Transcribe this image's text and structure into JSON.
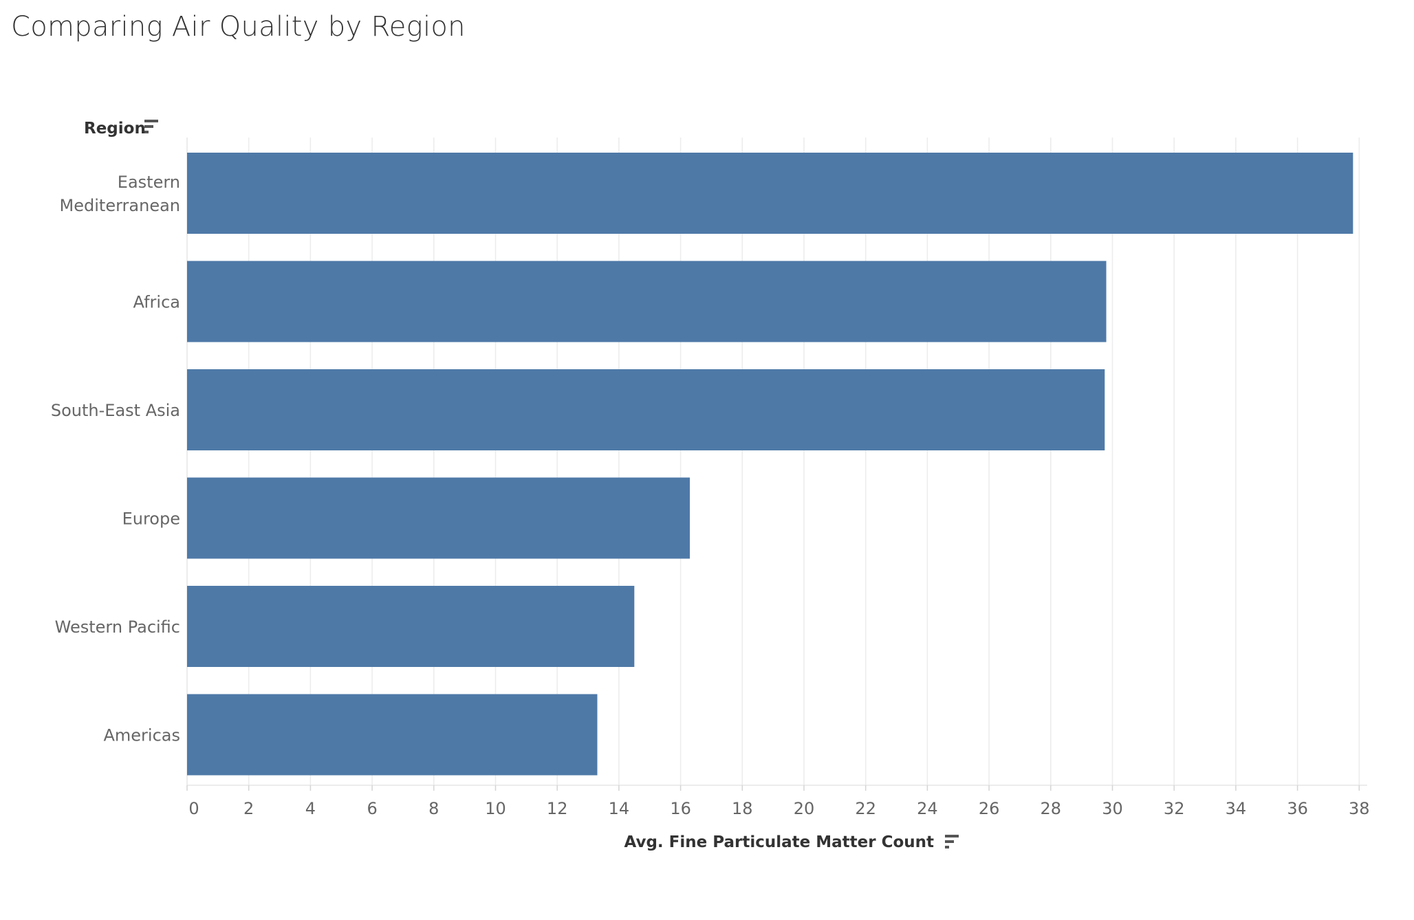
{
  "chart_data": {
    "type": "bar",
    "orientation": "horizontal",
    "title": "Comparing Air Quality by Region",
    "category_header": "Region",
    "xlabel": "Avg. Fine Particulate Matter Count",
    "categories": [
      [
        "Eastern",
        "Mediterranean"
      ],
      [
        "Africa"
      ],
      [
        "South-East Asia"
      ],
      [
        "Europe"
      ],
      [
        "Western Pacific"
      ],
      [
        "Americas"
      ]
    ],
    "values": [
      37.8,
      29.8,
      29.75,
      16.3,
      14.5,
      13.3
    ],
    "xlim": [
      0,
      39
    ],
    "xticks": [
      0,
      2,
      4,
      6,
      8,
      10,
      12,
      14,
      16,
      18,
      20,
      22,
      24,
      26,
      28,
      30,
      32,
      34,
      36,
      38
    ],
    "grid": "vertical",
    "bar_color": "#4e79a7"
  },
  "icons": {
    "region_sort": "sort-icon",
    "axis_sort": "sort-icon"
  }
}
